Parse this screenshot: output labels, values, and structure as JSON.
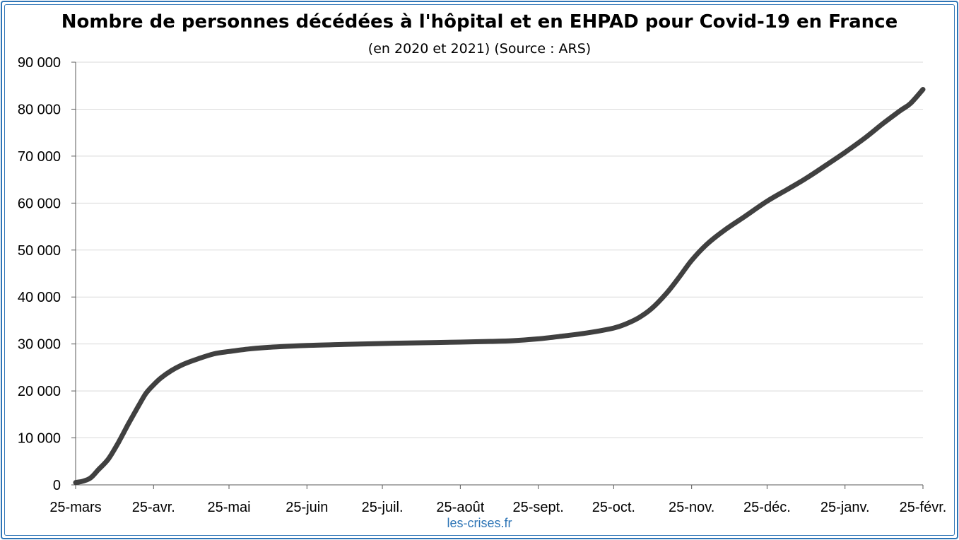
{
  "chart_data": {
    "type": "line",
    "title": "Nombre de personnes décédées à l'hôpital et en EHPAD pour Covid-19 en France",
    "subtitle": "(en 2020 et 2021) (Source : ARS)",
    "xlabel": "",
    "ylabel": "",
    "categories": [
      "25-mars",
      "25-avr.",
      "25-mai",
      "25-juin",
      "25-juil.",
      "25-août",
      "25-sept.",
      "25-oct.",
      "25-nov.",
      "25-déc.",
      "25-janv.",
      "25-févr."
    ],
    "category_days": [
      0,
      31,
      61,
      92,
      122,
      153,
      184,
      214,
      245,
      275,
      306,
      337
    ],
    "ylim": [
      0,
      90000
    ],
    "yticks": [
      0,
      10000,
      20000,
      30000,
      40000,
      50000,
      60000,
      70000,
      80000,
      90000
    ],
    "ytick_labels": [
      "0",
      "10 000",
      "20 000",
      "30 000",
      "40 000",
      "50 000",
      "60 000",
      "70 000",
      "80 000",
      "90 000"
    ],
    "grid": true,
    "color": "#404040",
    "series": [
      {
        "name": "",
        "points": [
          [
            0,
            500
          ],
          [
            3,
            800
          ],
          [
            6,
            1500
          ],
          [
            9,
            3200
          ],
          [
            13,
            5500
          ],
          [
            17,
            9000
          ],
          [
            21,
            13000
          ],
          [
            25,
            16800
          ],
          [
            28,
            19500
          ],
          [
            31,
            21300
          ],
          [
            34,
            22800
          ],
          [
            38,
            24300
          ],
          [
            43,
            25700
          ],
          [
            49,
            26900
          ],
          [
            55,
            27900
          ],
          [
            61,
            28400
          ],
          [
            70,
            29000
          ],
          [
            80,
            29400
          ],
          [
            92,
            29700
          ],
          [
            107,
            29900
          ],
          [
            122,
            30100
          ],
          [
            137,
            30250
          ],
          [
            153,
            30400
          ],
          [
            165,
            30550
          ],
          [
            174,
            30700
          ],
          [
            184,
            31100
          ],
          [
            194,
            31700
          ],
          [
            204,
            32400
          ],
          [
            214,
            33400
          ],
          [
            219,
            34300
          ],
          [
            224,
            35600
          ],
          [
            229,
            37500
          ],
          [
            235,
            40800
          ],
          [
            240,
            44200
          ],
          [
            245,
            47800
          ],
          [
            251,
            51200
          ],
          [
            258,
            54200
          ],
          [
            266,
            57100
          ],
          [
            275,
            60400
          ],
          [
            283,
            62900
          ],
          [
            290,
            65100
          ],
          [
            298,
            67900
          ],
          [
            306,
            70800
          ],
          [
            314,
            73900
          ],
          [
            321,
            76900
          ],
          [
            328,
            79700
          ],
          [
            332,
            81200
          ],
          [
            337,
            84200
          ]
        ]
      }
    ]
  },
  "source": "les-crises.fr"
}
